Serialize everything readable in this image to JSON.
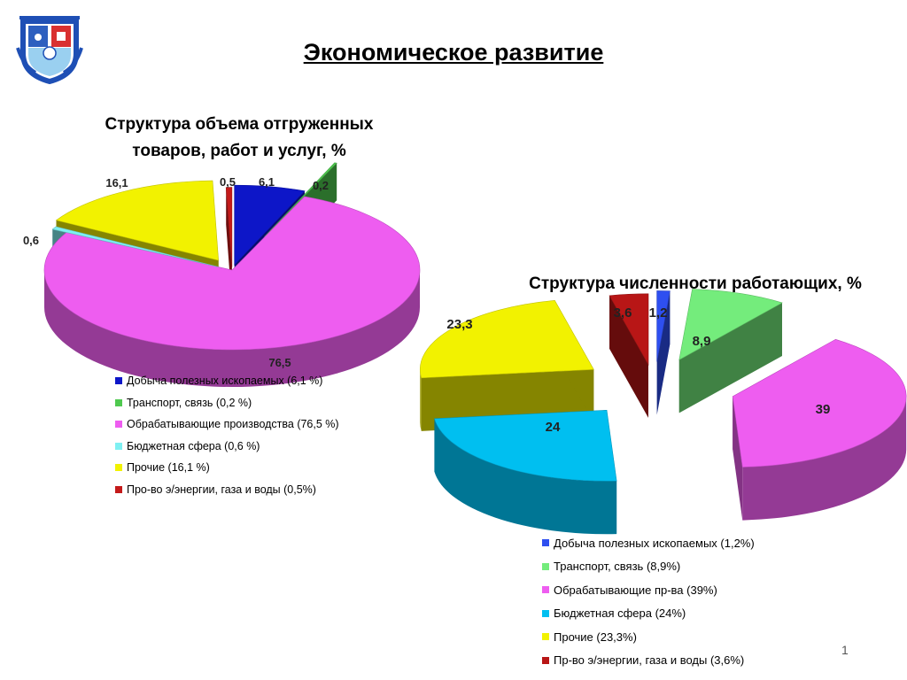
{
  "header": {
    "title": "Экономическое развитие"
  },
  "chart_data": [
    {
      "type": "pie",
      "title": "Структура объема отгруженных товаров, работ и услуг, %",
      "series": [
        {
          "name": "Добыча полезных ископаемых (6,1 %)",
          "value": 6.1,
          "label": "6,1",
          "color": "#0d16c8"
        },
        {
          "name": "Транспорт, связь (0,2 %)",
          "value": 0.2,
          "label": "0,2",
          "color": "#4fc94f"
        },
        {
          "name": "Обрабатывающие производства (76,5 %)",
          "value": 76.5,
          "label": "76,5",
          "color": "#ee5df0"
        },
        {
          "name": "Бюджетная сфера (0,6 %)",
          "value": 0.6,
          "label": "0,6",
          "color": "#7ff0f2"
        },
        {
          "name": "Прочие (16,1 %)",
          "value": 16.1,
          "label": "16,1",
          "color": "#f2f200"
        },
        {
          "name": "Про-во э/энергии, газа и воды (0,5%)",
          "value": 0.5,
          "label": "0,5",
          "color": "#c41a1a"
        }
      ]
    },
    {
      "type": "pie",
      "title": "Структура численности работающих, %",
      "series": [
        {
          "name": "Добыча полезных ископаемых (1,2%)",
          "value": 1.2,
          "label": "1,2",
          "color": "#2e4ff0"
        },
        {
          "name": "Транспорт, связь (8,9%)",
          "value": 8.9,
          "label": "8,9",
          "color": "#74ec7c"
        },
        {
          "name": "Обрабатывающие пр-ва (39%)",
          "value": 39,
          "label": "39",
          "color": "#ee5df0"
        },
        {
          "name": "Бюджетная сфера (24%)",
          "value": 24,
          "label": "24",
          "color": "#00bff0"
        },
        {
          "name": "Прочие (23,3%)",
          "value": 23.3,
          "label": "23,3",
          "color": "#f2f200"
        },
        {
          "name": "Пр-во э/энергии, газа и воды (3,6%)",
          "value": 3.6,
          "label": "3,6",
          "color": "#b81616"
        }
      ]
    }
  ],
  "footer": {
    "page_number": "1"
  }
}
